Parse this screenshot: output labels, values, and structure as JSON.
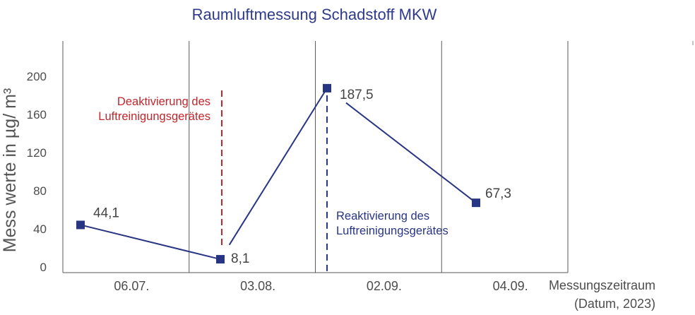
{
  "chart_data": {
    "type": "line",
    "title": "Raumluftmessung Schadstoff MKW",
    "ylabel": "Mess werte in µg/ m³",
    "xlabel": "Messungszeitraum",
    "xlabel_note": "(Datum, 2023)",
    "categories": [
      "06.07.",
      "03.08.",
      "02.09.",
      "04.09."
    ],
    "ylim": [
      0,
      200
    ],
    "yticks": [
      0,
      40,
      80,
      120,
      160,
      200
    ],
    "grid": {
      "vertical": true,
      "horizontal": false
    },
    "series": [
      {
        "values": [
          44.1,
          8.1,
          187.5,
          67.3
        ],
        "data_labels": [
          "44,1",
          "8,1",
          "187,5",
          "67,3"
        ],
        "color": "#283583",
        "marker": "square"
      }
    ],
    "annotations": [
      {
        "text_lines": [
          "Deaktivierung des",
          "Luftreinigungsgerätes"
        ],
        "color": "#c1272d",
        "line_style": "dashed"
      },
      {
        "text_lines": [
          "Reaktivierung des",
          "Luftreinigungsgerätes"
        ],
        "color": "#283583",
        "line_style": "dashed"
      }
    ]
  },
  "colors": {
    "title": "#2e3a8c",
    "grid": "#5a5a5a"
  }
}
